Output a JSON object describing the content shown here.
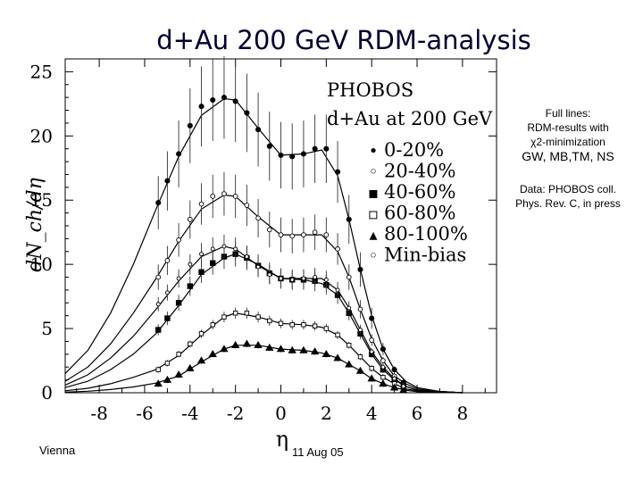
{
  "slide": {
    "title": "d+Au 200 GeV  RDM-analysis",
    "footer_left": "Vienna",
    "footer_center": "11 Aug 05"
  },
  "annotation": {
    "line1": "Full lines:",
    "line2": "RDM-results with",
    "line3": "χ2-minimization",
    "line4": "GW, MB,TM, NS",
    "data_line1": "Data: PHOBOS coll.",
    "data_line2": "Phys. Rev. C, in press"
  },
  "chart_data": {
    "type": "scatter",
    "title": "PHOBOS",
    "subtitle": "d+Au at 200 GeV",
    "xlabel": "η",
    "ylabel": "dN_ch/dη",
    "xlim": [
      -9.5,
      9.5
    ],
    "ylim": [
      0,
      26
    ],
    "xticks": [
      -8,
      -6,
      -4,
      -2,
      0,
      2,
      4,
      6,
      8
    ],
    "yticks": [
      0,
      5,
      10,
      15,
      20,
      25
    ],
    "series": [
      {
        "name": "0-20%",
        "marker": "•",
        "eta": [
          -5.4,
          -5,
          -4.5,
          -4,
          -3.5,
          -3,
          -2.5,
          -2,
          -1.5,
          -1,
          -0.5,
          0,
          0.5,
          1,
          1.5,
          2,
          2.5,
          3,
          3.5,
          4,
          4.5,
          5,
          5.4
        ],
        "values": [
          14.8,
          16.5,
          18.6,
          20.8,
          22.3,
          22.8,
          23.0,
          22.7,
          21.8,
          20.5,
          19.2,
          18.5,
          18.4,
          18.6,
          19.0,
          19.0,
          17.2,
          13.5,
          9.6,
          5.8,
          3.4,
          1.8,
          0.8
        ]
      },
      {
        "name": "20-40%",
        "marker": "◦",
        "eta": [
          -5.4,
          -5,
          -4.5,
          -4,
          -3.5,
          -3,
          -2.5,
          -2,
          -1.5,
          -1,
          -0.5,
          0,
          0.5,
          1,
          1.5,
          2,
          2.5,
          3,
          3.5,
          4,
          4.5,
          5,
          5.4
        ],
        "values": [
          9.0,
          10.3,
          11.9,
          13.5,
          14.7,
          15.3,
          15.5,
          15.3,
          14.6,
          13.6,
          12.7,
          12.3,
          12.2,
          12.3,
          12.5,
          12.3,
          11.2,
          9.0,
          6.5,
          4.1,
          2.5,
          1.3,
          0.6
        ]
      },
      {
        "name": "40-60%",
        "marker": "▪",
        "eta": [
          -5.4,
          -5,
          -4.5,
          -4,
          -3.5,
          -3,
          -2.5,
          -2,
          -1.5,
          -1,
          -0.5,
          0,
          0.5,
          1,
          1.5,
          2,
          2.5,
          3,
          3.5,
          4,
          4.5,
          5,
          5.4
        ],
        "values": [
          4.9,
          5.8,
          7.0,
          8.3,
          9.4,
          10.1,
          10.6,
          10.8,
          10.5,
          9.9,
          9.3,
          8.9,
          8.8,
          8.8,
          8.7,
          8.4,
          7.6,
          6.2,
          4.6,
          3.0,
          1.8,
          1.0,
          0.5
        ]
      },
      {
        "name": "60-80%",
        "marker": "▫",
        "eta": [
          -5.4,
          -5,
          -4.5,
          -4,
          -3.5,
          -3,
          -2.5,
          -2,
          -1.5,
          -1,
          -0.5,
          0,
          0.5,
          1,
          1.5,
          2,
          2.5,
          3,
          3.5,
          4,
          4.5,
          5,
          5.4
        ],
        "values": [
          1.8,
          2.3,
          3.0,
          3.8,
          4.6,
          5.3,
          5.9,
          6.2,
          6.2,
          5.9,
          5.6,
          5.4,
          5.3,
          5.3,
          5.2,
          5.0,
          4.5,
          3.7,
          2.8,
          1.9,
          1.2,
          0.7,
          0.3
        ]
      },
      {
        "name": "80-100%",
        "marker": "▴",
        "eta": [
          -5.4,
          -5,
          -4.5,
          -4,
          -3.5,
          -3,
          -2.5,
          -2,
          -1.5,
          -1,
          -0.5,
          0,
          0.5,
          1,
          1.5,
          2,
          2.5,
          3,
          3.5,
          4,
          4.5,
          5,
          5.4
        ],
        "values": [
          0.7,
          1.0,
          1.4,
          1.9,
          2.5,
          3.0,
          3.4,
          3.7,
          3.8,
          3.7,
          3.5,
          3.4,
          3.3,
          3.3,
          3.2,
          3.0,
          2.7,
          2.2,
          1.7,
          1.1,
          0.7,
          0.4,
          0.2
        ]
      },
      {
        "name": "Min-bias",
        "marker": "◦",
        "eta": [
          -5.4,
          -5,
          -4.5,
          -4,
          -3.5,
          -3,
          -2.5,
          -2,
          -1.5,
          -1,
          -0.5,
          0,
          0.5,
          1,
          1.5,
          2,
          2.5,
          3,
          3.5,
          4,
          4.5,
          5,
          5.4
        ],
        "values": [
          6.9,
          7.8,
          8.9,
          10.0,
          10.8,
          11.2,
          11.4,
          11.2,
          10.6,
          9.8,
          9.2,
          8.9,
          8.8,
          8.9,
          9.0,
          8.8,
          8.0,
          6.6,
          4.9,
          3.2,
          2.0,
          1.1,
          0.5
        ]
      }
    ],
    "fits": [
      {
        "name": "0-20%",
        "eta": [
          -9.5,
          -8.5,
          -7.5,
          -6.5,
          -5.5,
          -4.5,
          -3.5,
          -2.5,
          -2,
          -1,
          0,
          1,
          1.8,
          2.5,
          3,
          3.5,
          4,
          4.5,
          5,
          5.5,
          6,
          7,
          8
        ],
        "values": [
          1.5,
          3.3,
          6.2,
          10.0,
          14.3,
          18.4,
          21.6,
          22.9,
          22.8,
          20.6,
          18.5,
          18.6,
          18.9,
          16.9,
          13.5,
          9.6,
          6.0,
          3.4,
          1.8,
          0.9,
          0.4,
          0.1,
          0.0
        ]
      },
      {
        "name": "20-40%",
        "eta": [
          -9.5,
          -8.5,
          -7.5,
          -6.5,
          -5.5,
          -4.5,
          -3.5,
          -2.5,
          -2,
          -1,
          0,
          1,
          1.8,
          2.5,
          3,
          3.5,
          4,
          4.5,
          5,
          5.5,
          6,
          7,
          8
        ],
        "values": [
          0.9,
          2.0,
          3.8,
          6.2,
          8.9,
          11.8,
          14.3,
          15.4,
          15.3,
          13.7,
          12.3,
          12.3,
          12.3,
          11.0,
          9.0,
          6.5,
          4.2,
          2.5,
          1.3,
          0.7,
          0.3,
          0.1,
          0.0
        ]
      },
      {
        "name": "Min-bias",
        "eta": [
          -9.5,
          -8.5,
          -7.5,
          -6.5,
          -5.5,
          -4.5,
          -3.5,
          -2.5,
          -2,
          -1,
          0,
          1,
          1.8,
          2.5,
          3,
          3.5,
          4,
          4.5,
          5,
          5.5,
          6,
          7,
          8
        ],
        "values": [
          0.6,
          1.4,
          2.7,
          4.4,
          6.5,
          8.7,
          10.6,
          11.4,
          11.2,
          9.9,
          8.9,
          8.9,
          8.9,
          8.0,
          6.6,
          4.9,
          3.2,
          2.0,
          1.1,
          0.5,
          0.2,
          0.1,
          0.0
        ]
      },
      {
        "name": "40-60%",
        "eta": [
          -9.5,
          -8.5,
          -7.5,
          -6.5,
          -5.5,
          -4.5,
          -3.5,
          -2.5,
          -2,
          -1,
          0,
          1,
          1.8,
          2.5,
          3,
          3.5,
          4,
          4.5,
          5,
          5.5,
          6,
          7,
          8
        ],
        "values": [
          0.4,
          0.9,
          1.8,
          3.0,
          4.6,
          6.8,
          9.2,
          10.5,
          10.8,
          10.0,
          8.9,
          8.8,
          8.5,
          7.6,
          6.2,
          4.6,
          3.0,
          1.8,
          1.0,
          0.5,
          0.2,
          0.1,
          0.0
        ]
      },
      {
        "name": "60-80%",
        "eta": [
          -9.5,
          -8.5,
          -7.5,
          -6.5,
          -5.5,
          -4.5,
          -3.5,
          -2.5,
          -2,
          -1,
          0,
          1,
          1.8,
          2.5,
          3,
          3.5,
          4,
          4.5,
          5,
          5.5,
          6,
          7,
          8
        ],
        "values": [
          0.15,
          0.35,
          0.7,
          1.2,
          1.8,
          2.9,
          4.5,
          5.9,
          6.2,
          5.9,
          5.4,
          5.3,
          5.1,
          4.5,
          3.7,
          2.8,
          1.9,
          1.2,
          0.7,
          0.3,
          0.15,
          0.05,
          0.0
        ]
      },
      {
        "name": "80-100%",
        "eta": [
          -9.5,
          -8.5,
          -7.5,
          -6.5,
          -5.5,
          -4.5,
          -3.5,
          -2.5,
          -2,
          -1,
          0,
          1,
          1.8,
          2.5,
          3,
          3.5,
          4,
          4.5,
          5,
          5.5,
          6,
          7,
          8
        ],
        "values": [
          0.05,
          0.12,
          0.25,
          0.45,
          0.75,
          1.3,
          2.4,
          3.4,
          3.7,
          3.7,
          3.4,
          3.3,
          3.1,
          2.7,
          2.2,
          1.7,
          1.1,
          0.7,
          0.4,
          0.2,
          0.08,
          0.02,
          0.0
        ]
      }
    ],
    "legend_position": "top-right inside"
  }
}
